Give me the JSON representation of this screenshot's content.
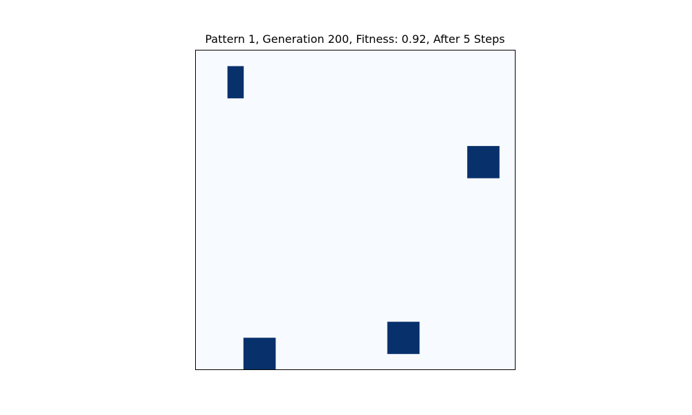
{
  "chart_data": {
    "type": "heatmap",
    "title": "Pattern 1, Generation 200, Fitness: 0.92, After 5 Steps",
    "grid_size": [
      20,
      20
    ],
    "colormap": "Blues",
    "colors": {
      "empty": "#f7fbff",
      "alive": "#08306b",
      "frame": "#000000"
    },
    "axes_visible": false,
    "alive_cells": [
      {
        "row": 1,
        "col": 2
      },
      {
        "row": 2,
        "col": 2
      },
      {
        "row": 6,
        "col": 17
      },
      {
        "row": 6,
        "col": 18
      },
      {
        "row": 7,
        "col": 17
      },
      {
        "row": 7,
        "col": 18
      },
      {
        "row": 17,
        "col": 12
      },
      {
        "row": 17,
        "col": 13
      },
      {
        "row": 18,
        "col": 12
      },
      {
        "row": 18,
        "col": 13
      },
      {
        "row": 18,
        "col": 3
      },
      {
        "row": 18,
        "col": 4
      },
      {
        "row": 19,
        "col": 3
      },
      {
        "row": 19,
        "col": 4
      }
    ]
  }
}
